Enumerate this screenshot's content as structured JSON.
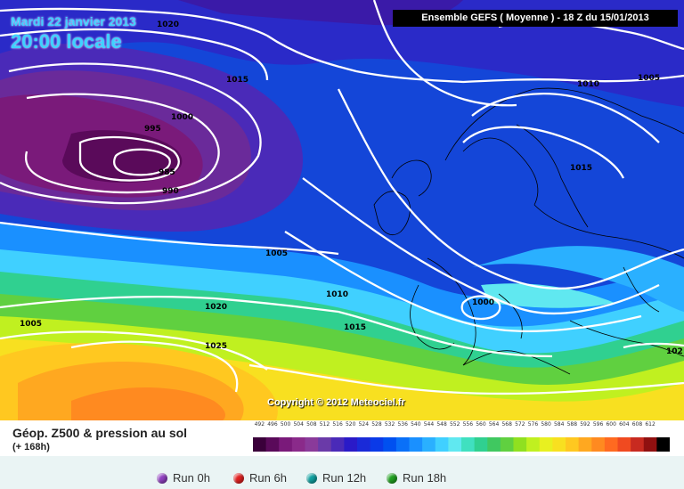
{
  "header": {
    "date_line": "Mardi 22 janvier 2013",
    "time_line": "20:00 locale",
    "run_banner": "Ensemble GEFS ( Moyenne )  -  18 Z du 15/01/2013"
  },
  "map": {
    "copyright": "Copyright © 2012 Meteociel.fr",
    "isobar_labels": [
      "1020",
      "1015",
      "1010",
      "1005",
      "1000",
      "995",
      "985",
      "990",
      "1015",
      "1005",
      "1010",
      "1020",
      "1025",
      "1015",
      "1000",
      "1005",
      "102"
    ]
  },
  "legend": {
    "title": "Géop. Z500 & pression au sol",
    "subtitle": "(+ 168h)",
    "scale_values": [
      "492",
      "496",
      "500",
      "504",
      "508",
      "512",
      "516",
      "520",
      "524",
      "528",
      "532",
      "536",
      "540",
      "544",
      "548",
      "552",
      "556",
      "560",
      "564",
      "568",
      "572",
      "576",
      "580",
      "584",
      "588",
      "592",
      "596",
      "600",
      "604",
      "608",
      "612"
    ],
    "scale_colors": [
      "#3a003a",
      "#5a0a5a",
      "#7a1a7a",
      "#8a2a8a",
      "#8a3a9a",
      "#6a3aa8",
      "#4a2ab8",
      "#2a1ac8",
      "#1a2ad8",
      "#0a3ae8",
      "#0050f0",
      "#0a70f8",
      "#1a90ff",
      "#2ab0ff",
      "#40d0ff",
      "#60e8f0",
      "#40e0c0",
      "#30d090",
      "#40c860",
      "#60d040",
      "#90e020",
      "#c0f020",
      "#e8f020",
      "#f8e020",
      "#ffc820",
      "#ffa820",
      "#ff8a20",
      "#ff6a20",
      "#f04a20",
      "#c82a20",
      "#901010",
      "#000000"
    ]
  },
  "runs": [
    {
      "label": "Run 0h",
      "color": "#9040c0"
    },
    {
      "label": "Run 6h",
      "color": "#e02020"
    },
    {
      "label": "Run 12h",
      "color": "#10a0a0"
    },
    {
      "label": "Run 18h",
      "color": "#20a020"
    }
  ]
}
